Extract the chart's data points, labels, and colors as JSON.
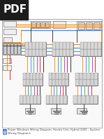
{
  "bg_color": "#ffffff",
  "pdf_badge_bg": "#1c1c1c",
  "pdf_badge_text": "PDF",
  "pdf_badge_color": "#ffffff",
  "title_text": "Power Windows Wiring Diagram: Honda Civic Hybrid 2005 - System Wiring Diagrams",
  "title_color": "#444444",
  "title_fontsize": 2.8,
  "diagram_border": "#999999",
  "connector_fill": "#cccccc",
  "connector_border": "#555555",
  "icon_color": "#3366bb",
  "figsize": [
    1.49,
    1.98
  ],
  "dpi": 100,
  "wire_orange": "#ff8c00",
  "wire_blue": "#4488ff",
  "wire_green": "#44bb44",
  "wire_purple": "#aa44cc",
  "wire_red": "#dd2222",
  "wire_black": "#222222",
  "wire_gray": "#888888"
}
